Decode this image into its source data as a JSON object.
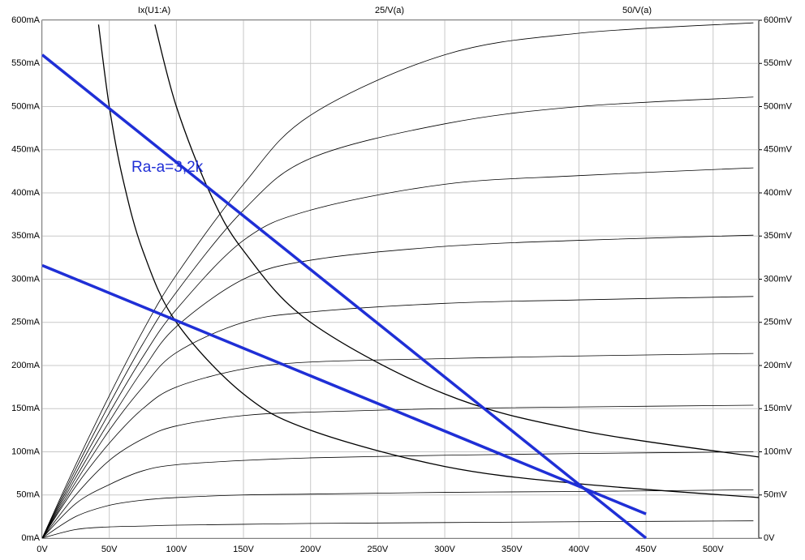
{
  "chart_data": {
    "type": "line",
    "x": [
      0,
      25,
      50,
      75,
      100,
      150,
      200,
      300,
      400,
      530
    ],
    "series": [
      {
        "name": "Ix(U1:A)",
        "color": "#000000",
        "values": [
          [
            0,
            10,
            13,
            14,
            15,
            16,
            17,
            18,
            19,
            20
          ],
          [
            0,
            25,
            38,
            44,
            47,
            50,
            51,
            53,
            54,
            56
          ],
          [
            0,
            40,
            62,
            78,
            85,
            90,
            93,
            96,
            98,
            100
          ],
          [
            0,
            50,
            90,
            115,
            130,
            142,
            146,
            150,
            152,
            154
          ],
          [
            0,
            60,
            110,
            150,
            175,
            196,
            204,
            208,
            211,
            214
          ],
          [
            0,
            65,
            125,
            175,
            215,
            250,
            262,
            272,
            276,
            280
          ],
          [
            0,
            70,
            135,
            195,
            245,
            300,
            322,
            338,
            345,
            351
          ],
          [
            0,
            75,
            145,
            210,
            265,
            345,
            380,
            410,
            420,
            429
          ],
          [
            0,
            80,
            155,
            225,
            285,
            380,
            440,
            480,
            500,
            511
          ],
          [
            0,
            85,
            165,
            240,
            305,
            410,
            490,
            560,
            585,
            597
          ]
        ]
      },
      {
        "name": "25/V(a)",
        "color": "#000000",
        "axis": "y2",
        "x": [
          42,
          50,
          60,
          75,
          100,
          150,
          200,
          300,
          400,
          534
        ],
        "values": [
          595,
          500,
          417,
          333,
          250,
          167,
          125,
          83,
          63,
          47
        ]
      },
      {
        "name": "50/V(a)",
        "color": "#000000",
        "axis": "y2",
        "x": [
          84,
          100,
          125,
          150,
          200,
          300,
          400,
          534
        ],
        "values": [
          595,
          500,
          400,
          333,
          250,
          167,
          125,
          94
        ]
      }
    ],
    "load_lines": [
      {
        "color": "#1f2fd6",
        "x": [
          0,
          450
        ],
        "values": [
          560,
          0
        ]
      },
      {
        "color": "#1f2fd6",
        "x": [
          0,
          450
        ],
        "values": [
          316,
          28
        ]
      }
    ],
    "annotation": "Ra-a=3,2k",
    "xlim": [
      0,
      534
    ],
    "ylim": [
      0,
      600
    ],
    "y2lim": [
      0,
      600
    ],
    "grid": true,
    "xticks": [
      {
        "value": 0,
        "label": "0V"
      },
      {
        "value": 50,
        "label": "50V"
      },
      {
        "value": 100,
        "label": "100V"
      },
      {
        "value": 150,
        "label": "150V"
      },
      {
        "value": 200,
        "label": "200V"
      },
      {
        "value": 250,
        "label": "250V"
      },
      {
        "value": 300,
        "label": "300V"
      },
      {
        "value": 350,
        "label": "350V"
      },
      {
        "value": 400,
        "label": "400V"
      },
      {
        "value": 450,
        "label": "450V"
      },
      {
        "value": 500,
        "label": "500V"
      }
    ],
    "yticks": [
      {
        "value": 0,
        "label": "0mA"
      },
      {
        "value": 50,
        "label": "50mA"
      },
      {
        "value": 100,
        "label": "100mA"
      },
      {
        "value": 150,
        "label": "150mA"
      },
      {
        "value": 200,
        "label": "200mA"
      },
      {
        "value": 250,
        "label": "250mA"
      },
      {
        "value": 300,
        "label": "300mA"
      },
      {
        "value": 350,
        "label": "350mA"
      },
      {
        "value": 400,
        "label": "400mA"
      },
      {
        "value": 450,
        "label": "450mA"
      },
      {
        "value": 500,
        "label": "500mA"
      },
      {
        "value": 550,
        "label": "550mA"
      },
      {
        "value": 600,
        "label": "600mA"
      }
    ],
    "y2ticks": [
      {
        "value": 0,
        "label": "0V"
      },
      {
        "value": 50,
        "label": "50mV"
      },
      {
        "value": 100,
        "label": "100mV"
      },
      {
        "value": 150,
        "label": "150mV"
      },
      {
        "value": 200,
        "label": "200mV"
      },
      {
        "value": 250,
        "label": "250mV"
      },
      {
        "value": 300,
        "label": "300mV"
      },
      {
        "value": 350,
        "label": "350mV"
      },
      {
        "value": 400,
        "label": "400mV"
      },
      {
        "value": 450,
        "label": "450mV"
      },
      {
        "value": 500,
        "label": "500mV"
      },
      {
        "value": 550,
        "label": "550mV"
      },
      {
        "value": 600,
        "label": "600mV"
      }
    ]
  }
}
